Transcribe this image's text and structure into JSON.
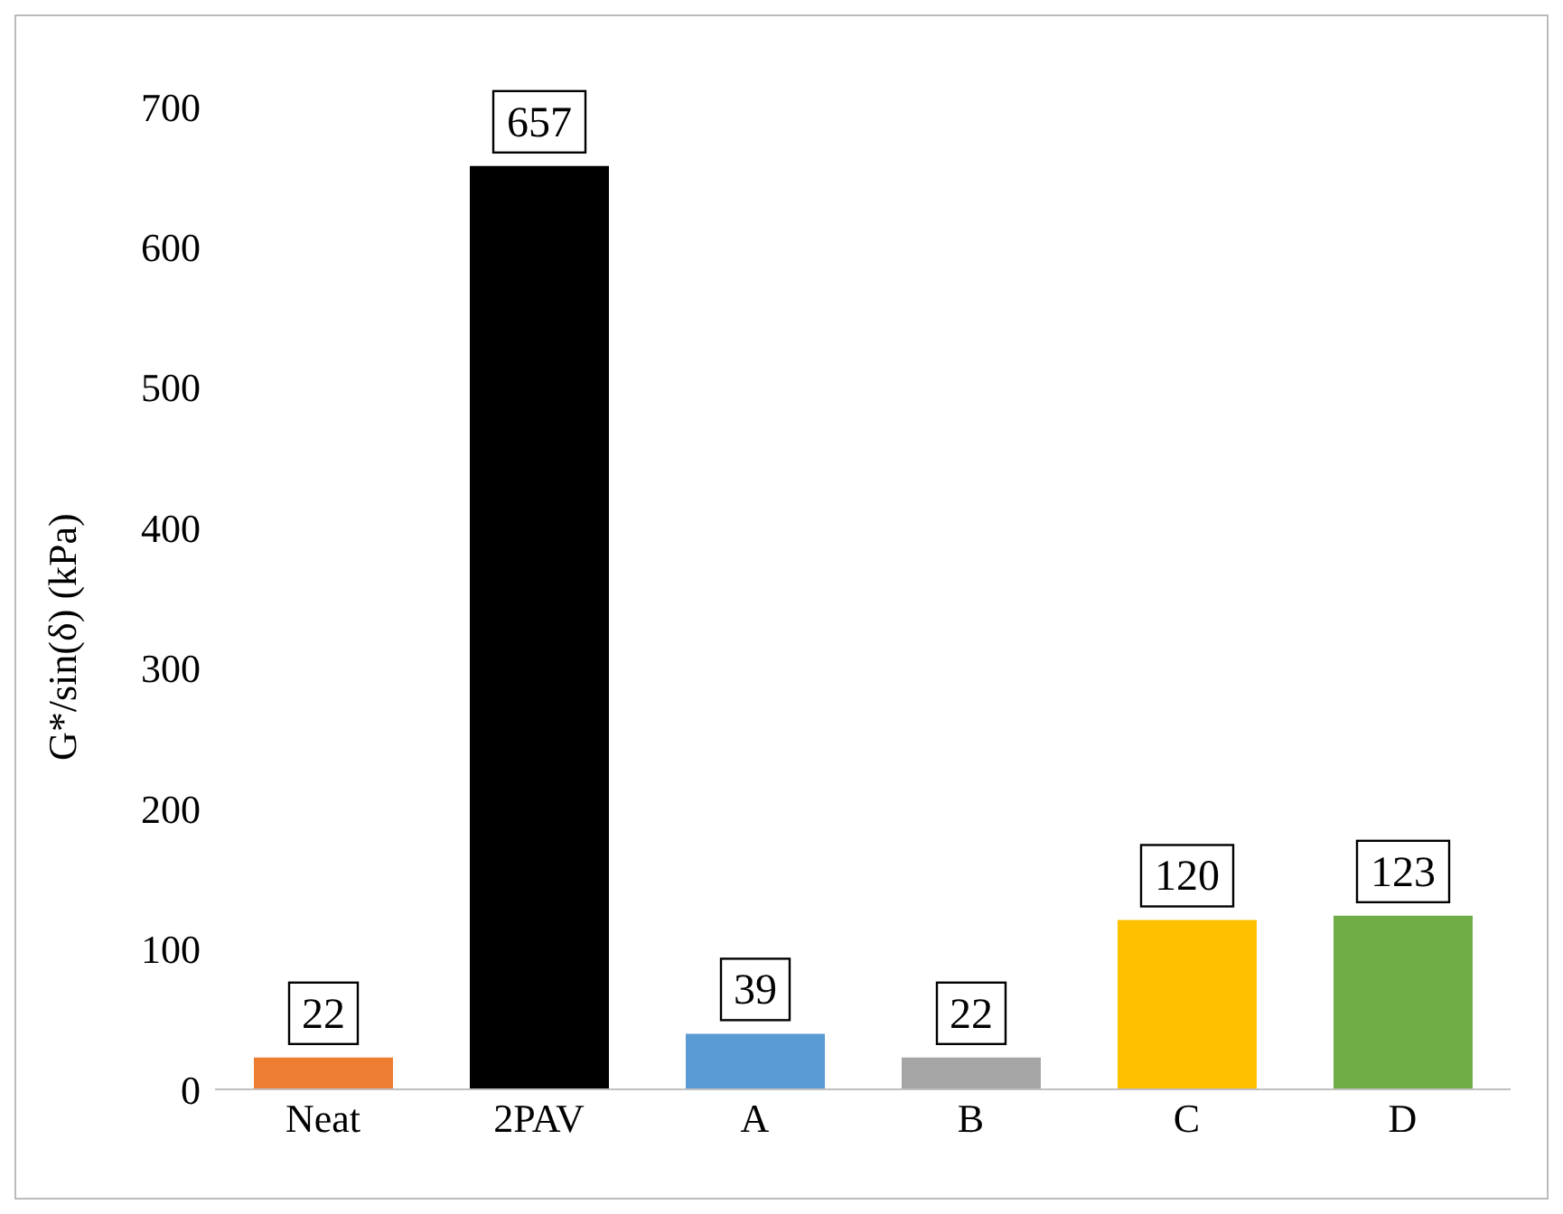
{
  "chart_data": {
    "type": "bar",
    "ylabel": "G*/sin(δ) (kPa)",
    "categories": [
      "Neat",
      "2PAV",
      "A",
      "B",
      "C",
      "D"
    ],
    "values": [
      22,
      657,
      39,
      22,
      120,
      123
    ],
    "colors": [
      "#ed7d31",
      "#000000",
      "#5b9bd5",
      "#a5a5a5",
      "#ffc000",
      "#70ad47"
    ],
    "ylim": [
      0,
      700
    ],
    "yticks": [
      0,
      100,
      200,
      300,
      400,
      500,
      600,
      700
    ],
    "grid": false,
    "data_labels": true
  }
}
